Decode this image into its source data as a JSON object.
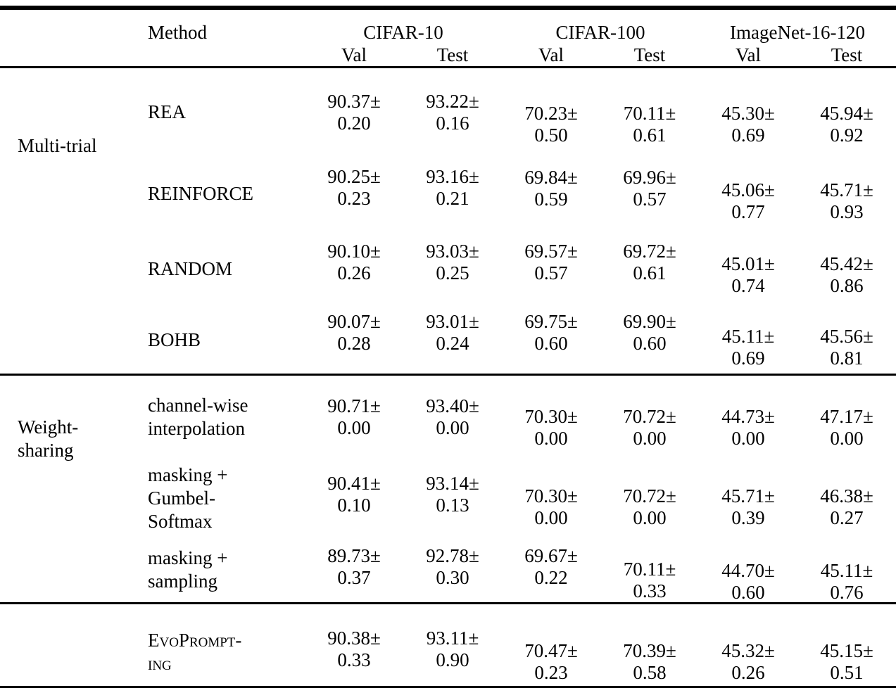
{
  "page": {
    "background": "#ffffff",
    "text_color": "#000000"
  },
  "table": {
    "pm": "±",
    "header": {
      "method": "Method",
      "datasets": [
        "CIFAR-10",
        "CIFAR-100",
        "ImageNet-16-120"
      ],
      "subcols": [
        "Val",
        "Test"
      ]
    },
    "groups": [
      {
        "label": "Multi-trial",
        "rows": [
          {
            "method": "REA",
            "cells": [
              {
                "mean": "90.37",
                "std": "0.20"
              },
              {
                "mean": "93.22",
                "std": "0.16"
              },
              {
                "mean": "70.23",
                "std": "0.50"
              },
              {
                "mean": "70.11",
                "std": "0.61"
              },
              {
                "mean": "45.30",
                "std": "0.69"
              },
              {
                "mean": "45.94",
                "std": "0.92"
              }
            ]
          },
          {
            "method": "REINFORCE",
            "cells": [
              {
                "mean": "90.25",
                "std": "0.23"
              },
              {
                "mean": "93.16",
                "std": "0.21"
              },
              {
                "mean": "69.84",
                "std": "0.59"
              },
              {
                "mean": "69.96",
                "std": "0.57"
              },
              {
                "mean": "45.06",
                "std": "0.77"
              },
              {
                "mean": "45.71",
                "std": "0.93"
              }
            ]
          },
          {
            "method": "RANDOM",
            "cells": [
              {
                "mean": "90.10",
                "std": "0.26"
              },
              {
                "mean": "93.03",
                "std": "0.25"
              },
              {
                "mean": "69.57",
                "std": "0.57"
              },
              {
                "mean": "69.72",
                "std": "0.61"
              },
              {
                "mean": "45.01",
                "std": "0.74"
              },
              {
                "mean": "45.42",
                "std": "0.86"
              }
            ]
          },
          {
            "method": "BOHB",
            "cells": [
              {
                "mean": "90.07",
                "std": "0.28"
              },
              {
                "mean": "93.01",
                "std": "0.24"
              },
              {
                "mean": "69.75",
                "std": "0.60"
              },
              {
                "mean": "69.90",
                "std": "0.60"
              },
              {
                "mean": "45.11",
                "std": "0.69"
              },
              {
                "mean": "45.56",
                "std": "0.81"
              }
            ]
          }
        ]
      },
      {
        "label": "Weight-\nsharing",
        "rows": [
          {
            "method": "channel-wise\ninterpolation",
            "cells": [
              {
                "mean": "90.71",
                "std": "0.00"
              },
              {
                "mean": "93.40",
                "std": "0.00"
              },
              {
                "mean": "70.30",
                "std": "0.00"
              },
              {
                "mean": "70.72",
                "std": "0.00"
              },
              {
                "mean": "44.73",
                "std": "0.00"
              },
              {
                "mean": "47.17",
                "std": "0.00"
              }
            ]
          },
          {
            "method": "masking +\nGumbel-\nSoftmax",
            "cells": [
              {
                "mean": "90.41",
                "std": "0.10"
              },
              {
                "mean": "93.14",
                "std": "0.13"
              },
              {
                "mean": "70.30",
                "std": "0.00"
              },
              {
                "mean": "70.72",
                "std": "0.00"
              },
              {
                "mean": "45.71",
                "std": "0.39"
              },
              {
                "mean": "46.38",
                "std": "0.27"
              }
            ]
          },
          {
            "method": "masking +\nsampling",
            "cells": [
              {
                "mean": "89.73",
                "std": "0.37"
              },
              {
                "mean": "92.78",
                "std": "0.30"
              },
              {
                "mean": "69.67",
                "std": "0.22"
              },
              {
                "mean": "70.11",
                "std": "0.33"
              },
              {
                "mean": "44.70",
                "std": "0.60"
              },
              {
                "mean": "45.11",
                "std": "0.76"
              }
            ]
          }
        ]
      },
      {
        "label": "",
        "rows": [
          {
            "method": "EvoPrompt-\ning",
            "smallcaps": true,
            "cells": [
              {
                "mean": "90.38",
                "std": "0.33"
              },
              {
                "mean": "93.11",
                "std": "0.90"
              },
              {
                "mean": "70.47",
                "std": "0.23"
              },
              {
                "mean": "70.39",
                "std": "0.58"
              },
              {
                "mean": "45.32",
                "std": "0.26"
              },
              {
                "mean": "45.15",
                "std": "0.51"
              }
            ]
          }
        ]
      }
    ]
  }
}
